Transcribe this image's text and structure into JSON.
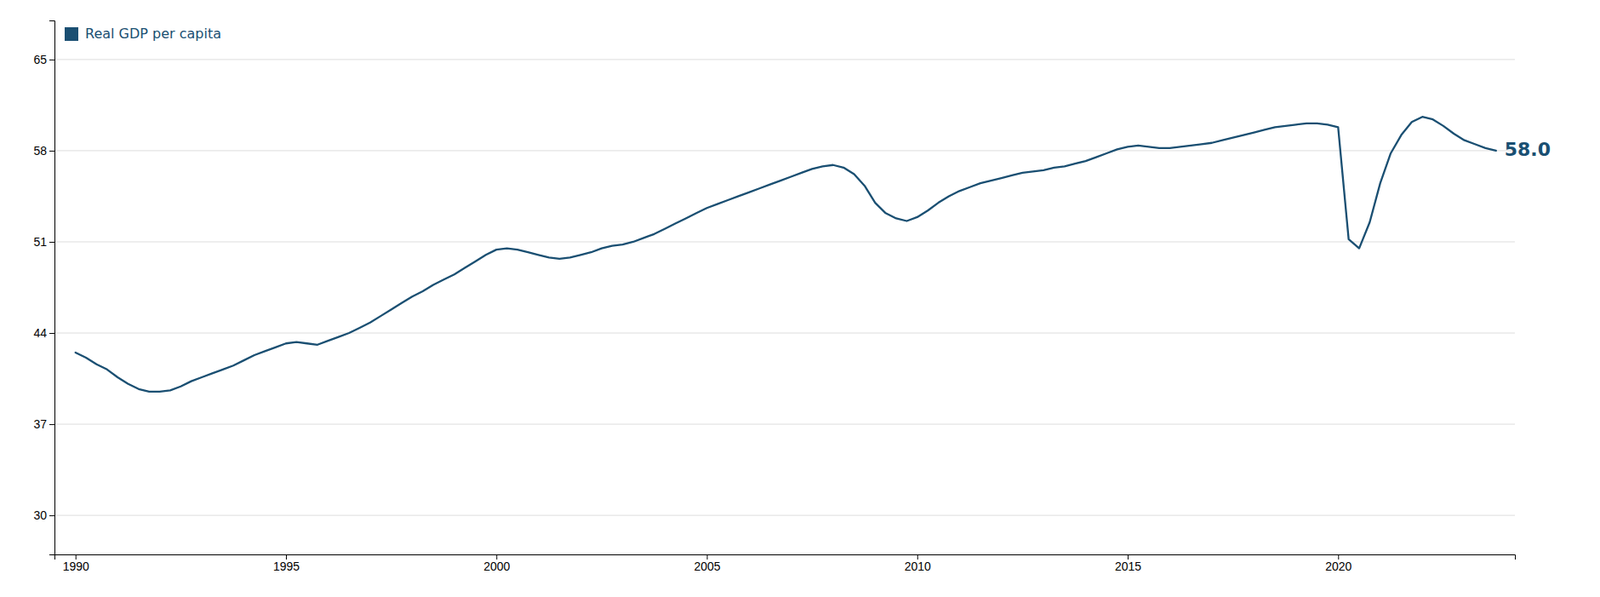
{
  "chart_data": {
    "type": "line",
    "x": [
      1990.0,
      1990.25,
      1990.5,
      1990.75,
      1991.0,
      1991.25,
      1991.5,
      1991.75,
      1992.0,
      1992.25,
      1992.5,
      1992.75,
      1993.0,
      1993.25,
      1993.5,
      1993.75,
      1994.0,
      1994.25,
      1994.5,
      1994.75,
      1995.0,
      1995.25,
      1995.5,
      1995.75,
      1996.0,
      1996.25,
      1996.5,
      1996.75,
      1997.0,
      1997.25,
      1997.5,
      1997.75,
      1998.0,
      1998.25,
      1998.5,
      1998.75,
      1999.0,
      1999.25,
      1999.5,
      1999.75,
      2000.0,
      2000.25,
      2000.5,
      2000.75,
      2001.0,
      2001.25,
      2001.5,
      2001.75,
      2002.0,
      2002.25,
      2002.5,
      2002.75,
      2003.0,
      2003.25,
      2003.5,
      2003.75,
      2004.0,
      2004.25,
      2004.5,
      2004.75,
      2005.0,
      2005.25,
      2005.5,
      2005.75,
      2006.0,
      2006.25,
      2006.5,
      2006.75,
      2007.0,
      2007.25,
      2007.5,
      2007.75,
      2008.0,
      2008.25,
      2008.5,
      2008.75,
      2009.0,
      2009.25,
      2009.5,
      2009.75,
      2010.0,
      2010.25,
      2010.5,
      2010.75,
      2011.0,
      2011.25,
      2011.5,
      2011.75,
      2012.0,
      2012.25,
      2012.5,
      2012.75,
      2013.0,
      2013.25,
      2013.5,
      2013.75,
      2014.0,
      2014.25,
      2014.5,
      2014.75,
      2015.0,
      2015.25,
      2015.5,
      2015.75,
      2016.0,
      2016.25,
      2016.5,
      2016.75,
      2017.0,
      2017.25,
      2017.5,
      2017.75,
      2018.0,
      2018.25,
      2018.5,
      2018.75,
      2019.0,
      2019.25,
      2019.5,
      2019.75,
      2020.0,
      2020.25,
      2020.5,
      2020.75,
      2021.0,
      2021.25,
      2021.5,
      2021.75,
      2022.0,
      2022.25,
      2022.5,
      2022.75,
      2023.0,
      2023.25,
      2023.5,
      2023.75
    ],
    "series": [
      {
        "name": "Real GDP per capita",
        "color": "#1a4f72",
        "values": [
          42.5,
          42.1,
          41.6,
          41.2,
          40.6,
          40.1,
          39.7,
          39.5,
          39.5,
          39.6,
          39.9,
          40.3,
          40.6,
          40.9,
          41.2,
          41.5,
          41.9,
          42.3,
          42.6,
          42.9,
          43.2,
          43.3,
          43.2,
          43.1,
          43.4,
          43.7,
          44.0,
          44.4,
          44.8,
          45.3,
          45.8,
          46.3,
          46.8,
          47.2,
          47.7,
          48.1,
          48.5,
          49.0,
          49.5,
          50.0,
          50.4,
          50.5,
          50.4,
          50.2,
          50.0,
          49.8,
          49.7,
          49.8,
          50.0,
          50.2,
          50.5,
          50.7,
          50.8,
          51.0,
          51.3,
          51.6,
          52.0,
          52.4,
          52.8,
          53.2,
          53.6,
          53.9,
          54.2,
          54.5,
          54.8,
          55.1,
          55.4,
          55.7,
          56.0,
          56.3,
          56.6,
          56.8,
          56.9,
          56.7,
          56.2,
          55.3,
          54.0,
          53.2,
          52.8,
          52.6,
          52.9,
          53.4,
          54.0,
          54.5,
          54.9,
          55.2,
          55.5,
          55.7,
          55.9,
          56.1,
          56.3,
          56.4,
          56.5,
          56.7,
          56.8,
          57.0,
          57.2,
          57.5,
          57.8,
          58.1,
          58.3,
          58.4,
          58.3,
          58.2,
          58.2,
          58.3,
          58.4,
          58.5,
          58.6,
          58.8,
          59.0,
          59.2,
          59.4,
          59.6,
          59.8,
          59.9,
          60.0,
          60.1,
          60.1,
          60.0,
          59.8,
          51.2,
          50.5,
          52.5,
          55.5,
          57.8,
          59.2,
          60.2,
          60.6,
          60.4,
          59.9,
          59.3,
          58.8,
          58.5,
          58.2,
          58.0
        ]
      }
    ],
    "xlim": [
      1989.5,
      2024.2
    ],
    "xticks": [
      1990,
      1995,
      2000,
      2005,
      2010,
      2015,
      2020
    ],
    "ylim": [
      27,
      68
    ],
    "yticks": [
      30,
      37,
      44,
      51,
      58,
      65
    ],
    "grid": true,
    "legend": "top-left",
    "annotations": [
      {
        "text": "58.0"
      }
    ]
  }
}
